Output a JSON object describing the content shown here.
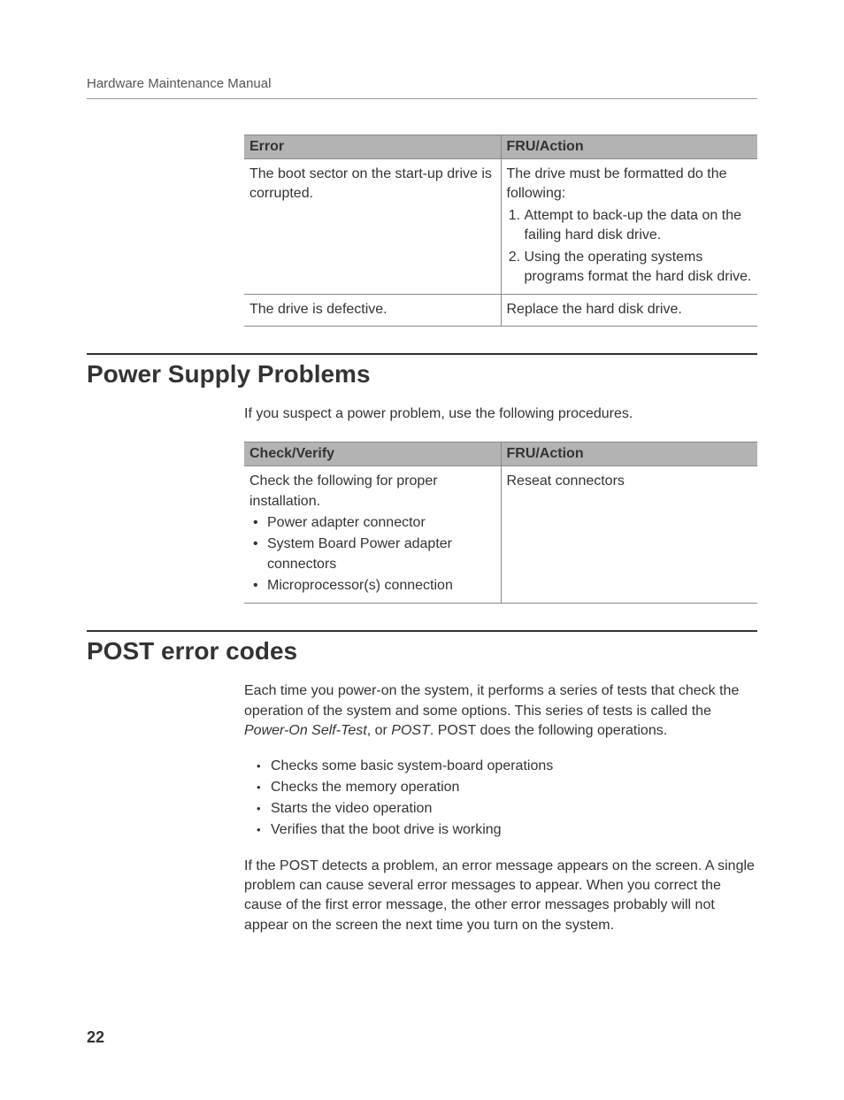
{
  "header": {
    "title": "Hardware Maintenance Manual"
  },
  "table1": {
    "headers": [
      "Error",
      "FRU/Action"
    ],
    "rows": [
      {
        "error": "The boot sector on the start-up drive is corrupted.",
        "action_intro": "The drive must be formatted do the following:",
        "action_steps": [
          "Attempt to back-up the data on the failing hard disk drive.",
          "Using the operating systems programs format the hard disk drive."
        ]
      },
      {
        "error": "The drive is defective.",
        "action": "Replace the hard disk drive."
      }
    ]
  },
  "section_power": {
    "title": "Power Supply Problems",
    "intro": "If you suspect a power problem, use the following procedures."
  },
  "table2": {
    "headers": [
      "Check/Verify",
      "FRU/Action"
    ],
    "rows": [
      {
        "check_intro": "Check the following for proper installation.",
        "check_items": [
          "Power adapter connector",
          "System  Board Power adapter connectors",
          "Microprocessor(s) connection"
        ],
        "action": "Reseat connectors"
      }
    ]
  },
  "section_post": {
    "title": "POST error codes",
    "para1_a": "Each time you power-on the system, it performs a series of tests that check the operation of the system and some options. This series of tests is called the ",
    "para1_italic1": "Power-On Self-Test",
    "para1_b": ", or ",
    "para1_italic2": "POST",
    "para1_c": ". POST does the following operations.",
    "list": [
      "Checks some basic system-board operations",
      "Checks the memory operation",
      "Starts the video operation",
      "Verifies that the boot drive is working"
    ],
    "para2": "If the POST detects a problem, an error message appears on the screen. A single problem can cause several error messages to appear. When you correct the cause of the first error message, the other error messages probably will not appear on the screen the next time you turn on the system."
  },
  "page_number": "22"
}
